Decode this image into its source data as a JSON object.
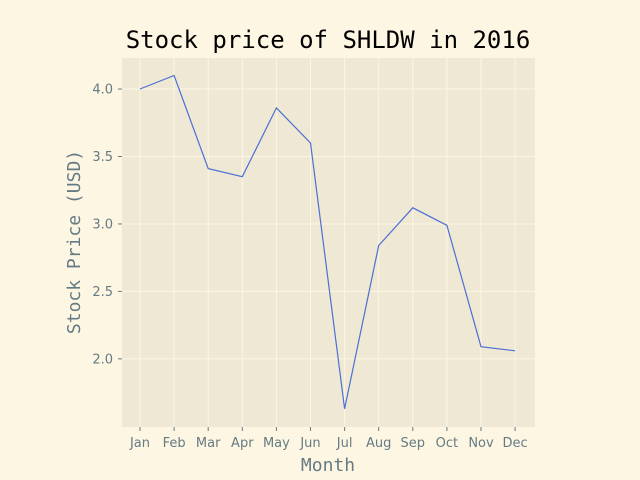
{
  "chart_data": {
    "type": "line",
    "title": "Stock price of SHLDW in 2016",
    "xlabel": "Month",
    "ylabel": "Stock Price (USD)",
    "categories": [
      "Jan",
      "Feb",
      "Mar",
      "Apr",
      "May",
      "Jun",
      "Jul",
      "Aug",
      "Sep",
      "Oct",
      "Nov",
      "Dec"
    ],
    "series": [
      {
        "values": [
          4.0,
          4.1,
          3.41,
          3.35,
          3.86,
          3.6,
          1.63,
          2.84,
          3.12,
          2.99,
          2.09,
          2.06
        ]
      }
    ],
    "ylim": [
      1.495,
      4.23
    ],
    "yticks": [
      "2.0",
      "2.5",
      "3.0",
      "3.5",
      "4.0"
    ],
    "grid": true,
    "colors": {
      "background": "#fdf6e3",
      "plot_area": "#eee8d5",
      "grid": "#fdf6e3",
      "line": "#4d6fd4",
      "text": "#657b83"
    }
  }
}
